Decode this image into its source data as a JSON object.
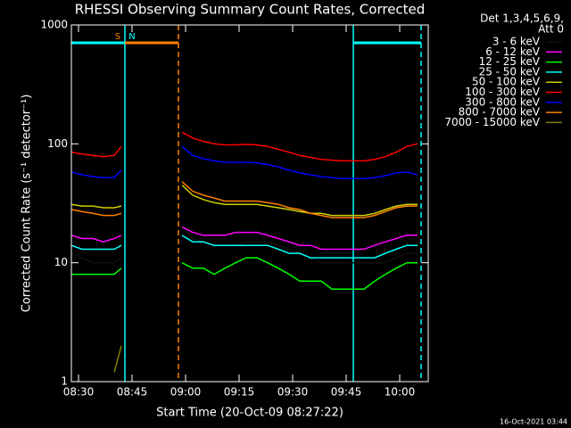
{
  "chart_data": {
    "type": "line",
    "title": "RHESSI Observing Summary Count Rates, Corrected",
    "x_label": "Start Time (20-Oct-09 08:27:22)",
    "y_label": "Corrected Count Rate (s⁻¹ detector⁻¹)",
    "legend_title": [
      "Det 1,3,4,5,6,9,",
      "Att 0"
    ],
    "footer": "16-Oct-2021 03:44",
    "log_y": true,
    "xlim": [
      "08:28",
      "10:08"
    ],
    "xticks": [
      "08:30",
      "08:45",
      "09:00",
      "09:15",
      "09:30",
      "09:45",
      "10:00"
    ],
    "ylim": [
      1,
      1000
    ],
    "yticks": [
      1,
      10,
      100,
      1000
    ],
    "x": [
      "08:28",
      "08:31",
      "08:34",
      "08:37",
      "08:40",
      "08:42",
      "08:50",
      "08:59",
      "09:02",
      "09:05",
      "09:08",
      "09:11",
      "09:14",
      "09:17",
      "09:20",
      "09:23",
      "09:26",
      "09:29",
      "09:32",
      "09:35",
      "09:38",
      "09:41",
      "09:44",
      "09:47",
      "09:50",
      "09:53",
      "09:56",
      "09:59",
      "10:02",
      "10:05"
    ],
    "series": [
      {
        "name": "3 - 6 keV",
        "color": "#000000",
        "values": [
          12,
          11,
          10,
          10,
          10,
          11,
          null,
          20,
          16,
          15,
          14,
          14,
          14,
          15,
          15,
          15,
          14,
          13,
          12,
          11,
          10,
          10,
          10,
          10,
          10,
          10,
          10,
          11,
          12,
          12
        ]
      },
      {
        "name": "6 - 12 keV",
        "color": "#ff00ff",
        "values": [
          17,
          16,
          16,
          15,
          16,
          17,
          null,
          20,
          18,
          17,
          17,
          17,
          18,
          18,
          18,
          17,
          16,
          15,
          14,
          14,
          13,
          13,
          13,
          13,
          13,
          14,
          15,
          16,
          17,
          17
        ]
      },
      {
        "name": "12 - 25 keV",
        "color": "#00ff00",
        "values": [
          8,
          8,
          8,
          8,
          8,
          9,
          null,
          10,
          9,
          9,
          8,
          9,
          10,
          11,
          11,
          10,
          9,
          8,
          7,
          7,
          7,
          6,
          6,
          6,
          6,
          7,
          8,
          9,
          10,
          10
        ]
      },
      {
        "name": "25 - 50 keV",
        "color": "#00ffff",
        "values": [
          14,
          13,
          13,
          13,
          13,
          14,
          null,
          17,
          15,
          15,
          14,
          14,
          14,
          14,
          14,
          14,
          13,
          12,
          12,
          11,
          11,
          11,
          11,
          11,
          11,
          11,
          12,
          13,
          14,
          14
        ]
      },
      {
        "name": "50 - 100 keV",
        "color": "#d0d000",
        "values": [
          31,
          30,
          30,
          29,
          29,
          30,
          null,
          45,
          37,
          34,
          32,
          31,
          31,
          31,
          31,
          30,
          29,
          28,
          27,
          26,
          26,
          25,
          25,
          25,
          25,
          26,
          28,
          30,
          31,
          31
        ]
      },
      {
        "name": "100 - 300 keV",
        "color": "#ff0000",
        "values": [
          85,
          82,
          80,
          78,
          80,
          95,
          null,
          125,
          112,
          105,
          100,
          98,
          98,
          99,
          98,
          95,
          90,
          85,
          80,
          77,
          74,
          73,
          72,
          72,
          72,
          74,
          78,
          85,
          95,
          100
        ]
      },
      {
        "name": "300 - 800 keV",
        "color": "#0000ff",
        "values": [
          58,
          55,
          53,
          52,
          52,
          60,
          null,
          95,
          80,
          75,
          72,
          70,
          70,
          70,
          69,
          67,
          64,
          60,
          57,
          55,
          53,
          52,
          51,
          51,
          51,
          52,
          54,
          57,
          58,
          55
        ]
      },
      {
        "name": "800 - 7000 keV",
        "color": "#ff8000",
        "values": [
          28,
          27,
          26,
          25,
          25,
          26,
          null,
          48,
          40,
          37,
          35,
          33,
          33,
          33,
          33,
          32,
          31,
          29,
          28,
          26,
          25,
          24,
          24,
          24,
          24,
          25,
          27,
          29,
          30,
          30
        ]
      },
      {
        "name": "7000 - 15000 keV",
        "color": "#808000",
        "values": [
          null,
          null,
          null,
          null,
          1.2,
          2,
          null,
          null,
          null,
          null,
          null,
          null,
          null,
          null,
          null,
          null,
          null,
          null,
          null,
          null,
          null,
          null,
          null,
          null,
          null,
          null,
          null,
          null,
          null,
          null
        ]
      }
    ],
    "vlines": [
      {
        "x": "08:43",
        "color": "#00ffff",
        "style": "solid"
      },
      {
        "x": "08:58",
        "color": "#ff8000",
        "style": "dashed"
      },
      {
        "x": "09:47",
        "color": "#00ffff",
        "style": "solid"
      },
      {
        "x": "10:06",
        "color": "#00ffff",
        "style": "dashed"
      }
    ],
    "bars": [
      {
        "from": "08:28",
        "to": "08:43",
        "color": "#00ffff"
      },
      {
        "from": "08:43",
        "to": "08:58",
        "color": "#ff8000"
      },
      {
        "from": "09:47",
        "to": "10:06",
        "color": "#00ffff"
      }
    ],
    "bar_labels": [
      {
        "text": "S",
        "x": "08:41",
        "color": "#ff8000"
      },
      {
        "text": "N",
        "x": "08:45",
        "color": "#00ffff"
      }
    ]
  }
}
